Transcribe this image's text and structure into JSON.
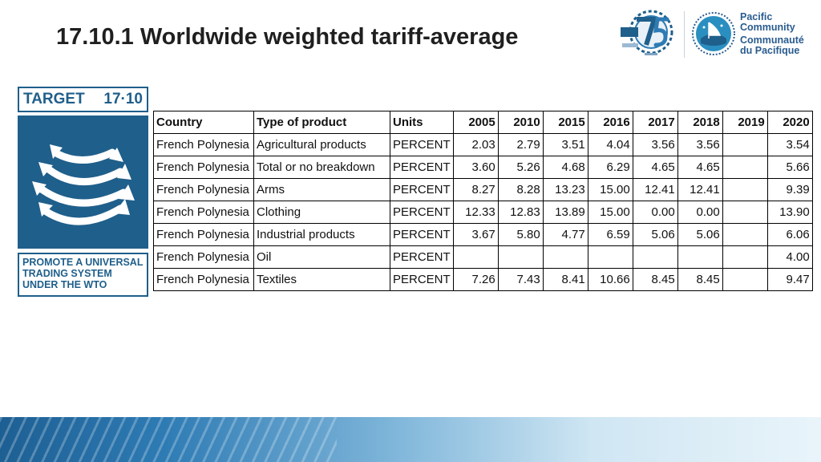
{
  "slide": {
    "title": "17.10.1  Worldwide weighted tariff-average"
  },
  "logos": {
    "anniversary_icon": "spc-75-anniversary-logo-icon",
    "spc_emblem_icon": "pacific-community-emblem-icon",
    "spc_text": [
      "Pacific",
      "Community",
      "Communauté",
      "du Pacifique"
    ]
  },
  "target_card": {
    "header_left": "TARGET",
    "header_right": "17·10",
    "icon": "curved-arrows-icon",
    "footer_lines": [
      "PROMOTE A UNIVERSAL",
      "TRADING SYSTEM",
      "UNDER THE WTO"
    ],
    "color": "#1f5f8b"
  },
  "table": {
    "headers": [
      "Country",
      "Type of product",
      "Units",
      "2005",
      "2010",
      "2015",
      "2016",
      "2017",
      "2018",
      "2019",
      "2020"
    ],
    "rows": [
      [
        "French Polynesia",
        "Agricultural products",
        "PERCENT",
        "2.03",
        "2.79",
        "3.51",
        "4.04",
        "3.56",
        "3.56",
        "",
        "3.54"
      ],
      [
        "French Polynesia",
        "Total or no breakdown",
        "PERCENT",
        "3.60",
        "5.26",
        "4.68",
        "6.29",
        "4.65",
        "4.65",
        "",
        "5.66"
      ],
      [
        "French Polynesia",
        "Arms",
        "PERCENT",
        "8.27",
        "8.28",
        "13.23",
        "15.00",
        "12.41",
        "12.41",
        "",
        "9.39"
      ],
      [
        "French Polynesia",
        "Clothing",
        "PERCENT",
        "12.33",
        "12.83",
        "13.89",
        "15.00",
        "0.00",
        "0.00",
        "",
        "13.90"
      ],
      [
        "French Polynesia",
        "Industrial products",
        "PERCENT",
        "3.67",
        "5.80",
        "4.77",
        "6.59",
        "5.06",
        "5.06",
        "",
        "6.06"
      ],
      [
        "French Polynesia",
        "Oil",
        "PERCENT",
        "",
        "",
        "",
        "",
        "",
        "",
        "",
        "4.00"
      ],
      [
        "French Polynesia",
        "Textiles",
        "PERCENT",
        "7.26",
        "7.43",
        "8.41",
        "10.66",
        "8.45",
        "8.45",
        "",
        "9.47"
      ]
    ]
  },
  "colors": {
    "brand_blue": "#1f5f8b",
    "spc_text": "#2a5c8f"
  }
}
